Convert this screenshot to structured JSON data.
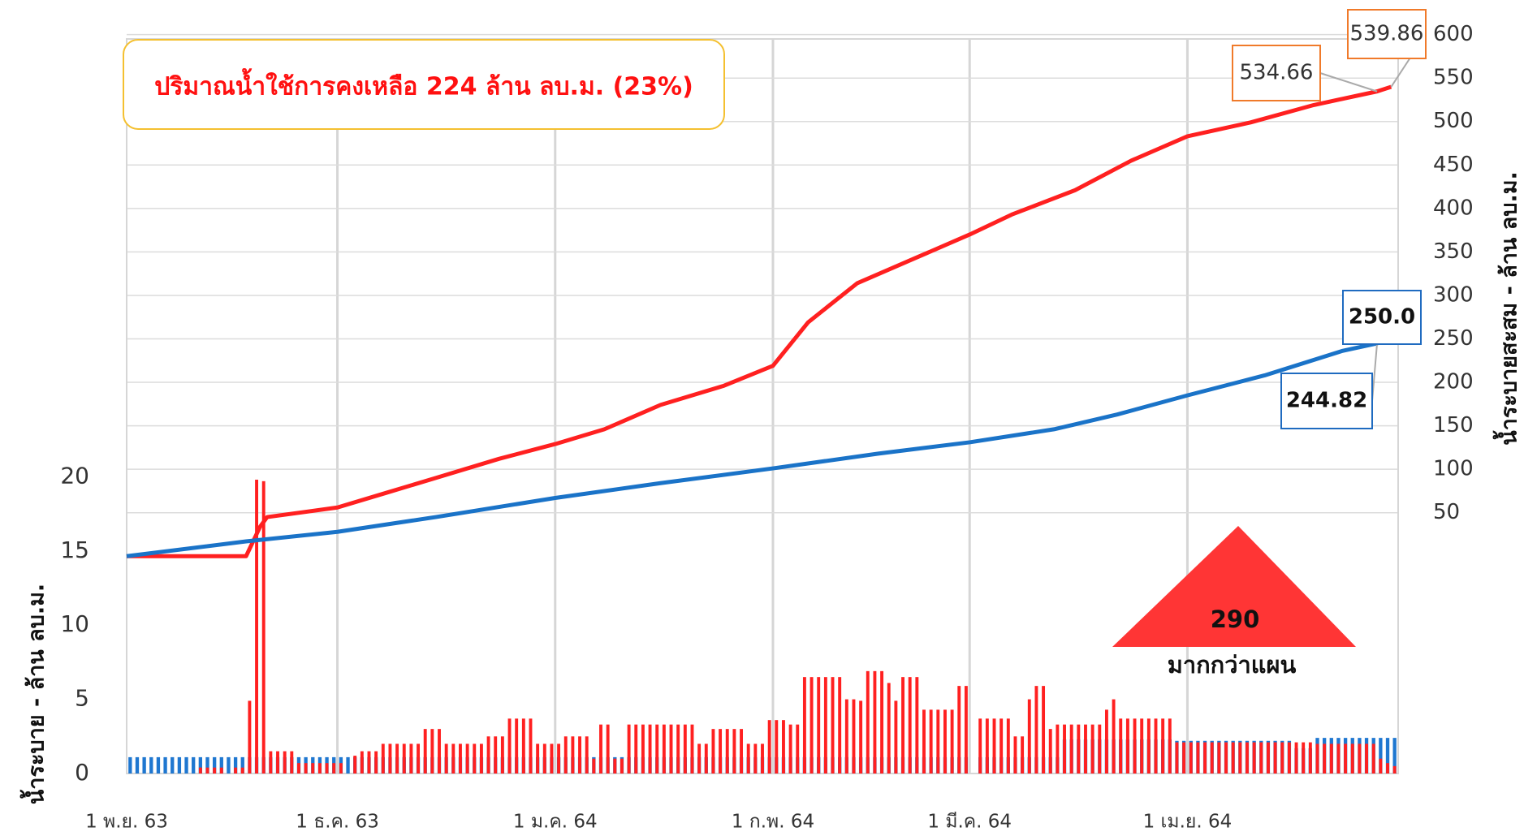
{
  "chart_data": {
    "type": "combo",
    "annotation": "ปริมาณน้ำใช้การคงเหลือ 224 ล้าน ลบ.ม. (23%)",
    "marker_value": "290",
    "marker_text": "มากกว่าแผน",
    "ylabel": "น้ำระบาย - ล้าน ลบ.ม.",
    "y2label": "น้ำระบายสะสม - ล้าน ลบ.ม.",
    "xlim": [
      0,
      181
    ],
    "xticks": [
      {
        "value": 0,
        "label": "1 พ.ย. 63"
      },
      {
        "value": 30,
        "label": "1 ธ.ค. 63"
      },
      {
        "value": 61,
        "label": "1 ม.ค. 64"
      },
      {
        "value": 92,
        "label": "1 ก.พ. 64"
      },
      {
        "value": 120,
        "label": "1 มี.ค. 64"
      },
      {
        "value": 151,
        "label": "1 เม.ย. 64"
      }
    ],
    "ylim": [
      0,
      49.5
    ],
    "yticks": [
      0,
      5,
      10,
      15,
      20
    ],
    "y2lim": [
      -250,
      595
    ],
    "y2ticks": [
      50,
      100,
      150,
      200,
      250,
      300,
      350,
      400,
      450,
      500,
      550,
      600
    ],
    "grid": true,
    "x": [
      0,
      1,
      2,
      3,
      4,
      5,
      6,
      7,
      8,
      9,
      10,
      11,
      12,
      13,
      14,
      15,
      16,
      17,
      18,
      19,
      20,
      21,
      22,
      23,
      24,
      25,
      26,
      27,
      28,
      29,
      30,
      31,
      32,
      33,
      34,
      35,
      36,
      37,
      38,
      39,
      40,
      41,
      42,
      43,
      44,
      45,
      46,
      47,
      48,
      49,
      50,
      51,
      52,
      53,
      54,
      55,
      56,
      57,
      58,
      59,
      60,
      61,
      62,
      63,
      64,
      65,
      66,
      67,
      68,
      69,
      70,
      71,
      72,
      73,
      74,
      75,
      76,
      77,
      78,
      79,
      80,
      81,
      82,
      83,
      84,
      85,
      86,
      87,
      88,
      89,
      90,
      91,
      92,
      93,
      94,
      95,
      96,
      97,
      98,
      99,
      100,
      101,
      102,
      103,
      104,
      105,
      106,
      107,
      108,
      109,
      110,
      111,
      112,
      113,
      114,
      115,
      116,
      117,
      118,
      119,
      120,
      121,
      122,
      123,
      124,
      125,
      126,
      127,
      128,
      129,
      130,
      131,
      132,
      133,
      134,
      135,
      136,
      137,
      138,
      139,
      140,
      141,
      142,
      143,
      144,
      145,
      146,
      147,
      148,
      149,
      150,
      151,
      152,
      153,
      154,
      155,
      156,
      157,
      158,
      159,
      160,
      161,
      162,
      163,
      164,
      165,
      166,
      167,
      168,
      169,
      170,
      171,
      172,
      173,
      174,
      175,
      176,
      177,
      178,
      179,
      180
    ],
    "series": [
      {
        "type": "bar",
        "color": "#1f77d0",
        "values": [
          1.1,
          1.1,
          1.1,
          1.1,
          1.1,
          1.1,
          1.1,
          1.1,
          1.1,
          1.1,
          1.1,
          1.1,
          1.1,
          1.1,
          1.1,
          1.1,
          1.1,
          1.1,
          1.1,
          1.1,
          1.1,
          1.1,
          1.1,
          1.1,
          1.1,
          1.1,
          1.1,
          1.1,
          1.1,
          1.1,
          1.1,
          1.1,
          1.1,
          1.1,
          1.1,
          1.1,
          1.1,
          1.1,
          1.1,
          1.1,
          1.1,
          1.1,
          1.1,
          1.1,
          1.1,
          1.1,
          1.1,
          1.1,
          1.1,
          1.1,
          1.1,
          1.1,
          1.1,
          1.1,
          1.1,
          1.1,
          1.1,
          1.1,
          1.1,
          1.1,
          1.1,
          1.1,
          1.1,
          1.1,
          1.1,
          1.1,
          1.1,
          1.1,
          1.1,
          1.1,
          1.1,
          1.1,
          1.1,
          1.1,
          1.1,
          1.1,
          1.1,
          1.1,
          1.1,
          1.1,
          1.1,
          1.1,
          1.1,
          1.1,
          1.1,
          1.1,
          1.1,
          1.1,
          1.1,
          1.1,
          1.1,
          1.1,
          1.1,
          1.1,
          1.1,
          1.1,
          1.1,
          1.1,
          1.1,
          1.1,
          1.1,
          1.1,
          1.1,
          1.1,
          1.1,
          1.1,
          1.1,
          1.1,
          1.1,
          1.1,
          1.1,
          1.1,
          1.1,
          1.1,
          1.1,
          1.1,
          1.1,
          1.1,
          1.1,
          1.1,
          0,
          1.1,
          1.1,
          1.1,
          1.1,
          1.1,
          1.1,
          1.1,
          1.1,
          1.1,
          1.1,
          1.1,
          1.1,
          2.3,
          2.3,
          2.3,
          2.3,
          2.3,
          2.3,
          2.3,
          2.3,
          2.3,
          2.3,
          2.3,
          2.3,
          2.3,
          2.3,
          2.3,
          2.3,
          2.2,
          2.2,
          2.2,
          2.2,
          2.2,
          2.2,
          2.2,
          2.2,
          2.2,
          2.2,
          2.2,
          2.2,
          2.2,
          2.2,
          2.2,
          2.2,
          2.2,
          1.7,
          1.7,
          1.7,
          2.4,
          2.4,
          2.4,
          2.4,
          2.4,
          2.4,
          2.4,
          2.4,
          2.4,
          2.4,
          2.4,
          2.4
        ]
      },
      {
        "type": "bar",
        "color": "#ff2020",
        "values": [
          0,
          0,
          0,
          0,
          0,
          0,
          0,
          0,
          0,
          0,
          0.4,
          0.4,
          0.4,
          0.4,
          0,
          0.4,
          0.4,
          4.9,
          19.8,
          19.7,
          1.5,
          1.5,
          1.5,
          1.5,
          0.7,
          0.7,
          0.7,
          0.7,
          0.7,
          0.7,
          0.7,
          0,
          1.2,
          1.5,
          1.5,
          1.5,
          2.0,
          2.0,
          2.0,
          2.0,
          2.0,
          2.0,
          3.0,
          3.0,
          3.0,
          2.0,
          2.0,
          2.0,
          2.0,
          2.0,
          2.0,
          2.5,
          2.5,
          2.5,
          3.7,
          3.7,
          3.7,
          3.7,
          2.0,
          2.0,
          2.0,
          2.0,
          2.5,
          2.5,
          2.5,
          2.5,
          1.0,
          3.3,
          3.3,
          1.0,
          1.0,
          3.3,
          3.3,
          3.3,
          3.3,
          3.3,
          3.3,
          3.3,
          3.3,
          3.3,
          3.3,
          2.0,
          2.0,
          3.0,
          3.0,
          3.0,
          3.0,
          3.0,
          2.0,
          2.0,
          2.0,
          3.6,
          3.6,
          3.6,
          3.3,
          3.3,
          6.5,
          6.5,
          6.5,
          6.5,
          6.5,
          6.5,
          5.0,
          5.0,
          4.9,
          6.9,
          6.9,
          6.9,
          6.1,
          4.9,
          6.5,
          6.5,
          6.5,
          4.3,
          4.3,
          4.3,
          4.3,
          4.3,
          5.9,
          5.9,
          0,
          3.7,
          3.7,
          3.7,
          3.7,
          3.7,
          2.5,
          2.5,
          5.0,
          5.9,
          5.9,
          3.0,
          3.3,
          3.3,
          3.3,
          3.3,
          3.3,
          3.3,
          3.3,
          4.3,
          5.0,
          3.7,
          3.7,
          3.7,
          3.7,
          3.7,
          3.7,
          3.7,
          3.7,
          2.1,
          2.1,
          2.1,
          2.1,
          2.1,
          2.1,
          2.1,
          2.1,
          2.1,
          2.1,
          2.1,
          2.1,
          2.1,
          2.1,
          2.1,
          2.1,
          2.1,
          2.1,
          2.1,
          2.1,
          2.0,
          2.0,
          2.0,
          2.0,
          2.0,
          2.0,
          2.0,
          2.0,
          2.0,
          1.0,
          0.7,
          0.5
        ]
      },
      {
        "type": "line",
        "axis": "y2",
        "color": "#ff2020",
        "x": [
          0,
          17,
          19,
          20,
          30,
          37,
          44,
          53,
          61,
          68,
          76,
          85,
          92,
          97,
          104,
          112,
          120,
          126,
          135,
          143,
          151,
          160,
          169,
          178,
          180
        ],
        "values": [
          0,
          0,
          34,
          45,
          56,
          73,
          90,
          112,
          129,
          146,
          174,
          196,
          219,
          269,
          314,
          342,
          370,
          393,
          421,
          455,
          483,
          499,
          519,
          534.66,
          539.86
        ]
      },
      {
        "type": "line",
        "axis": "y2",
        "color": "#1a73c8",
        "x": [
          0,
          17,
          30,
          44,
          61,
          76,
          92,
          107,
          120,
          132,
          141,
          151,
          162,
          173,
          178,
          180
        ],
        "values": [
          0,
          17,
          28,
          45,
          67,
          84,
          101,
          118,
          131,
          146,
          163,
          185,
          208,
          236,
          244.82,
          250.0
        ],
        "value_labels": [
          null,
          null,
          null,
          null,
          null,
          null,
          null,
          null,
          null,
          null,
          null,
          null,
          null,
          null,
          null,
          "250.0"
        ]
      }
    ]
  }
}
